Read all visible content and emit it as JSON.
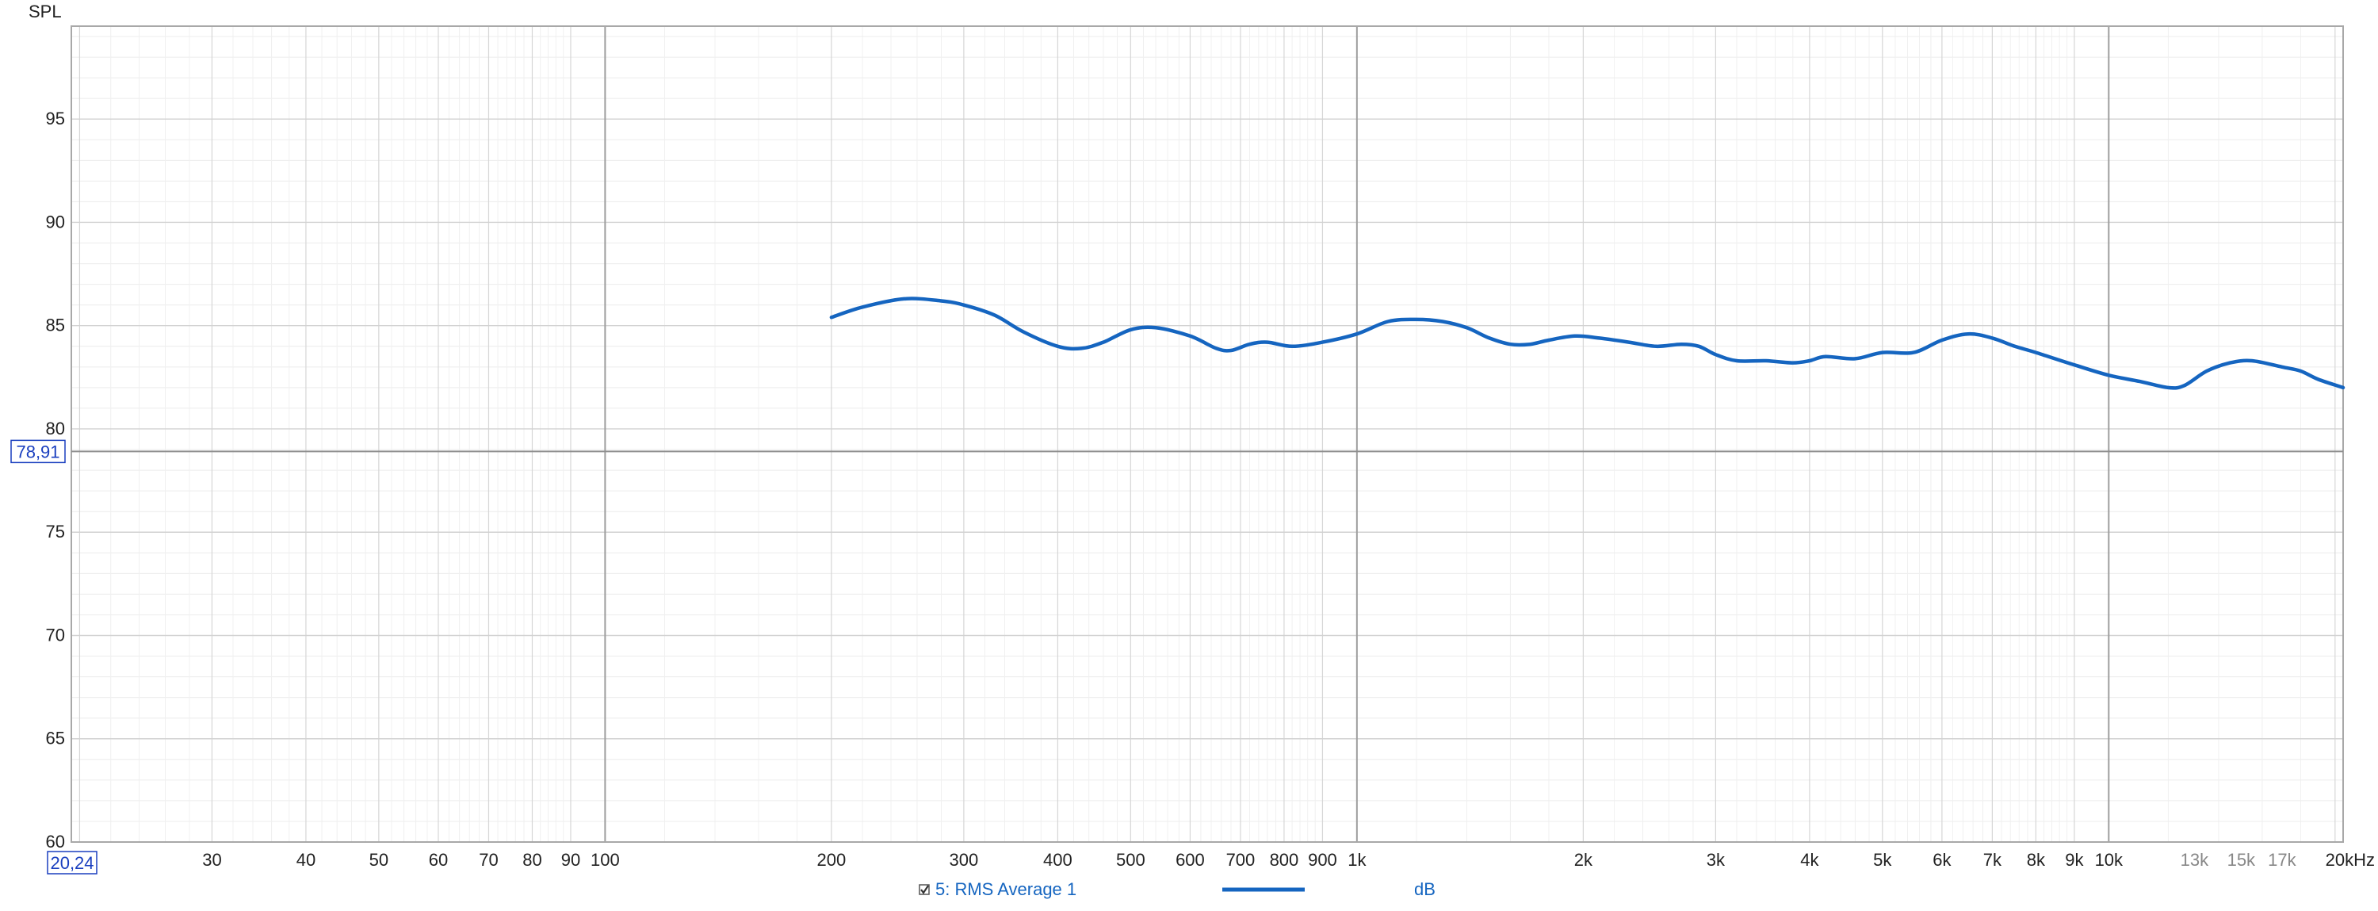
{
  "chart_data": {
    "type": "line",
    "ylabel": "SPL",
    "x_scale": "log",
    "xlim": [
      19.5,
      20500
    ],
    "ylim": [
      60,
      99.5
    ],
    "grid": true,
    "y_major_ticks": [
      {
        "value": 60,
        "label": "60"
      },
      {
        "value": 65,
        "label": "65"
      },
      {
        "value": 70,
        "label": "70"
      },
      {
        "value": 75,
        "label": "75"
      },
      {
        "value": 80,
        "label": "80"
      },
      {
        "value": 85,
        "label": "85"
      },
      {
        "value": 90,
        "label": "90"
      },
      {
        "value": 95,
        "label": "95"
      }
    ],
    "x_ticks": [
      {
        "value": 30,
        "label": "30",
        "dim": false
      },
      {
        "value": 40,
        "label": "40",
        "dim": false
      },
      {
        "value": 50,
        "label": "50",
        "dim": false
      },
      {
        "value": 60,
        "label": "60",
        "dim": false
      },
      {
        "value": 70,
        "label": "70",
        "dim": false
      },
      {
        "value": 80,
        "label": "80",
        "dim": false
      },
      {
        "value": 90,
        "label": "90",
        "dim": false
      },
      {
        "value": 100,
        "label": "100",
        "dim": false
      },
      {
        "value": 200,
        "label": "200",
        "dim": false
      },
      {
        "value": 300,
        "label": "300",
        "dim": false
      },
      {
        "value": 400,
        "label": "400",
        "dim": false
      },
      {
        "value": 500,
        "label": "500",
        "dim": false
      },
      {
        "value": 600,
        "label": "600",
        "dim": false
      },
      {
        "value": 700,
        "label": "700",
        "dim": false
      },
      {
        "value": 800,
        "label": "800",
        "dim": false
      },
      {
        "value": 900,
        "label": "900",
        "dim": false
      },
      {
        "value": 1000,
        "label": "1k",
        "dim": false
      },
      {
        "value": 2000,
        "label": "2k",
        "dim": false
      },
      {
        "value": 3000,
        "label": "3k",
        "dim": false
      },
      {
        "value": 4000,
        "label": "4k",
        "dim": false
      },
      {
        "value": 5000,
        "label": "5k",
        "dim": false
      },
      {
        "value": 6000,
        "label": "6k",
        "dim": false
      },
      {
        "value": 7000,
        "label": "7k",
        "dim": false
      },
      {
        "value": 8000,
        "label": "8k",
        "dim": false
      },
      {
        "value": 9000,
        "label": "9k",
        "dim": false
      },
      {
        "value": 10000,
        "label": "10k",
        "dim": false
      },
      {
        "value": 13000,
        "label": "13k",
        "dim": true
      },
      {
        "value": 15000,
        "label": "15k",
        "dim": true
      },
      {
        "value": 17000,
        "label": "17k",
        "dim": true
      },
      {
        "value": 20000,
        "label": "20kHz",
        "dim": false
      }
    ],
    "cursor": {
      "x_label": "20,24",
      "y_label": "78,91",
      "x": 20.24,
      "y": 78.91
    },
    "series": [
      {
        "name": "5: RMS Average 1",
        "unit": "dB",
        "color": "#1565c0",
        "points": [
          [
            200,
            85.4
          ],
          [
            220,
            85.9
          ],
          [
            250,
            86.3
          ],
          [
            280,
            86.2
          ],
          [
            300,
            86.0
          ],
          [
            330,
            85.5
          ],
          [
            360,
            84.7
          ],
          [
            400,
            84.0
          ],
          [
            430,
            83.9
          ],
          [
            460,
            84.2
          ],
          [
            500,
            84.8
          ],
          [
            540,
            84.9
          ],
          [
            600,
            84.5
          ],
          [
            650,
            83.9
          ],
          [
            680,
            83.8
          ],
          [
            720,
            84.1
          ],
          [
            760,
            84.2
          ],
          [
            820,
            84.0
          ],
          [
            900,
            84.2
          ],
          [
            1000,
            84.6
          ],
          [
            1100,
            85.2
          ],
          [
            1200,
            85.3
          ],
          [
            1300,
            85.2
          ],
          [
            1400,
            84.9
          ],
          [
            1500,
            84.4
          ],
          [
            1600,
            84.1
          ],
          [
            1700,
            84.1
          ],
          [
            1800,
            84.3
          ],
          [
            1950,
            84.5
          ],
          [
            2100,
            84.4
          ],
          [
            2300,
            84.2
          ],
          [
            2500,
            84.0
          ],
          [
            2700,
            84.1
          ],
          [
            2850,
            84.0
          ],
          [
            3000,
            83.6
          ],
          [
            3200,
            83.3
          ],
          [
            3500,
            83.3
          ],
          [
            3800,
            83.2
          ],
          [
            4000,
            83.3
          ],
          [
            4200,
            83.5
          ],
          [
            4600,
            83.4
          ],
          [
            5000,
            83.7
          ],
          [
            5500,
            83.7
          ],
          [
            6000,
            84.3
          ],
          [
            6500,
            84.6
          ],
          [
            7000,
            84.4
          ],
          [
            7500,
            84.0
          ],
          [
            8000,
            83.7
          ],
          [
            9000,
            83.1
          ],
          [
            10000,
            82.6
          ],
          [
            11000,
            82.3
          ],
          [
            12000,
            82.0
          ],
          [
            12600,
            82.1
          ],
          [
            13500,
            82.8
          ],
          [
            14500,
            83.2
          ],
          [
            15500,
            83.3
          ],
          [
            17000,
            83.0
          ],
          [
            18000,
            82.8
          ],
          [
            19000,
            82.4
          ],
          [
            20500,
            82.0
          ]
        ]
      }
    ]
  }
}
